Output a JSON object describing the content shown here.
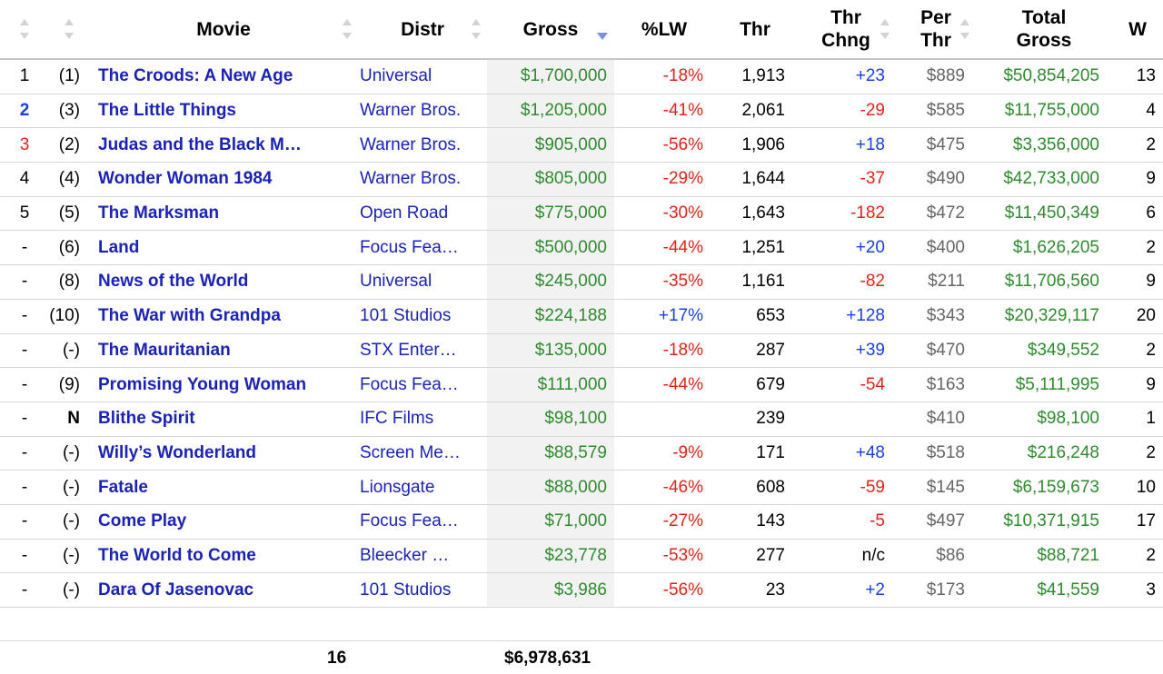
{
  "columns": {
    "rank": "",
    "prev": "",
    "movie": "Movie",
    "distr": "Distr",
    "gross": "Gross",
    "lw": "%LW",
    "thr": "Thr",
    "chng_l1": "Thr",
    "chng_l2": "Chng",
    "per_l1": "Per",
    "per_l2": "Thr",
    "total_l1": "Total",
    "total_l2": "Gross",
    "w": "W"
  },
  "sort": {
    "column": "gross",
    "direction": "descending"
  },
  "rows": [
    {
      "rank": "1",
      "rank_style": "same",
      "prev": "(1)",
      "movie": "The Croods: A New Age",
      "distr": "Universal",
      "gross": "$1,700,000",
      "lw": "-18%",
      "lw_style": "neg",
      "thr": "1,913",
      "chng": "+23",
      "chng_style": "pos",
      "per": "$889",
      "total": "$50,854,205",
      "w": "13"
    },
    {
      "rank": "2",
      "rank_style": "up",
      "prev": "(3)",
      "movie": "The Little Things",
      "distr": "Warner Bros.",
      "gross": "$1,205,000",
      "lw": "-41%",
      "lw_style": "neg",
      "thr": "2,061",
      "chng": "-29",
      "chng_style": "neg",
      "per": "$585",
      "total": "$11,755,000",
      "w": "4"
    },
    {
      "rank": "3",
      "rank_style": "down",
      "prev": "(2)",
      "movie": "Judas and the Black M…",
      "distr": "Warner Bros.",
      "gross": "$905,000",
      "lw": "-56%",
      "lw_style": "neg",
      "thr": "1,906",
      "chng": "+18",
      "chng_style": "pos",
      "per": "$475",
      "total": "$3,356,000",
      "w": "2"
    },
    {
      "rank": "4",
      "rank_style": "same",
      "prev": "(4)",
      "movie": "Wonder Woman 1984",
      "distr": "Warner Bros.",
      "gross": "$805,000",
      "lw": "-29%",
      "lw_style": "neg",
      "thr": "1,644",
      "chng": "-37",
      "chng_style": "neg",
      "per": "$490",
      "total": "$42,733,000",
      "w": "9"
    },
    {
      "rank": "5",
      "rank_style": "same",
      "prev": "(5)",
      "movie": "The Marksman",
      "distr": "Open Road",
      "gross": "$775,000",
      "lw": "-30%",
      "lw_style": "neg",
      "thr": "1,643",
      "chng": "-182",
      "chng_style": "neg",
      "per": "$472",
      "total": "$11,450,349",
      "w": "6"
    },
    {
      "rank": "-",
      "rank_style": "same",
      "prev": "(6)",
      "movie": "Land",
      "distr": "Focus Fea…",
      "gross": "$500,000",
      "lw": "-44%",
      "lw_style": "neg",
      "thr": "1,251",
      "chng": "+20",
      "chng_style": "pos",
      "per": "$400",
      "total": "$1,626,205",
      "w": "2"
    },
    {
      "rank": "-",
      "rank_style": "same",
      "prev": "(8)",
      "movie": "News of the World",
      "distr": "Universal",
      "gross": "$245,000",
      "lw": "-35%",
      "lw_style": "neg",
      "thr": "1,161",
      "chng": "-82",
      "chng_style": "neg",
      "per": "$211",
      "total": "$11,706,560",
      "w": "9"
    },
    {
      "rank": "-",
      "rank_style": "same",
      "prev": "(10)",
      "movie": "The War with Grandpa",
      "distr": "101 Studios",
      "gross": "$224,188",
      "lw": "+17%",
      "lw_style": "pos",
      "thr": "653",
      "chng": "+128",
      "chng_style": "pos",
      "per": "$343",
      "total": "$20,329,117",
      "w": "20"
    },
    {
      "rank": "-",
      "rank_style": "same",
      "prev": "(-)",
      "movie": "The Mauritanian",
      "distr": "STX Enter…",
      "gross": "$135,000",
      "lw": "-18%",
      "lw_style": "neg",
      "thr": "287",
      "chng": "+39",
      "chng_style": "pos",
      "per": "$470",
      "total": "$349,552",
      "w": "2"
    },
    {
      "rank": "-",
      "rank_style": "same",
      "prev": "(9)",
      "movie": "Promising Young Woman",
      "distr": "Focus Fea…",
      "gross": "$111,000",
      "lw": "-44%",
      "lw_style": "neg",
      "thr": "679",
      "chng": "-54",
      "chng_style": "neg",
      "per": "$163",
      "total": "$5,111,995",
      "w": "9"
    },
    {
      "rank": "-",
      "rank_style": "same",
      "prev": "N",
      "prev_bold": true,
      "movie": "Blithe Spirit",
      "distr": "IFC Films",
      "gross": "$98,100",
      "lw": "",
      "lw_style": "neg",
      "thr": "239",
      "chng": "",
      "chng_style": "pos",
      "per": "$410",
      "total": "$98,100",
      "w": "1"
    },
    {
      "rank": "-",
      "rank_style": "same",
      "prev": "(-)",
      "movie": "Willy’s Wonderland",
      "distr": "Screen Me…",
      "gross": "$88,579",
      "lw": "-9%",
      "lw_style": "neg",
      "thr": "171",
      "chng": "+48",
      "chng_style": "pos",
      "per": "$518",
      "total": "$216,248",
      "w": "2"
    },
    {
      "rank": "-",
      "rank_style": "same",
      "prev": "(-)",
      "movie": "Fatale",
      "distr": "Lionsgate",
      "gross": "$88,000",
      "lw": "-46%",
      "lw_style": "neg",
      "thr": "608",
      "chng": "-59",
      "chng_style": "neg",
      "per": "$145",
      "total": "$6,159,673",
      "w": "10"
    },
    {
      "rank": "-",
      "rank_style": "same",
      "prev": "(-)",
      "movie": "Come Play",
      "distr": "Focus Fea…",
      "gross": "$71,000",
      "lw": "-27%",
      "lw_style": "neg",
      "thr": "143",
      "chng": "-5",
      "chng_style": "neg",
      "per": "$497",
      "total": "$10,371,915",
      "w": "17"
    },
    {
      "rank": "-",
      "rank_style": "same",
      "prev": "(-)",
      "movie": "The World to Come",
      "distr": "Bleecker …",
      "gross": "$23,778",
      "lw": "-53%",
      "lw_style": "neg",
      "thr": "277",
      "chng": "n/c",
      "chng_style": "neutral",
      "per": "$86",
      "total": "$88,721",
      "w": "2"
    },
    {
      "rank": "-",
      "rank_style": "same",
      "prev": "(-)",
      "movie": "Dara Of Jasenovac",
      "distr": "101 Studios",
      "gross": "$3,986",
      "lw": "-56%",
      "lw_style": "neg",
      "thr": "23",
      "chng": "+2",
      "chng_style": "pos",
      "per": "$173",
      "total": "$41,559",
      "w": "3"
    }
  ],
  "footer": {
    "count": "16",
    "total_gross": "$6,978,631"
  },
  "colors": {
    "link": "#1a23b5",
    "money": "#2e8b2e",
    "negative": "#e0241b",
    "positive": "#1b3fe0",
    "sort_active": "#7f8fdc"
  }
}
